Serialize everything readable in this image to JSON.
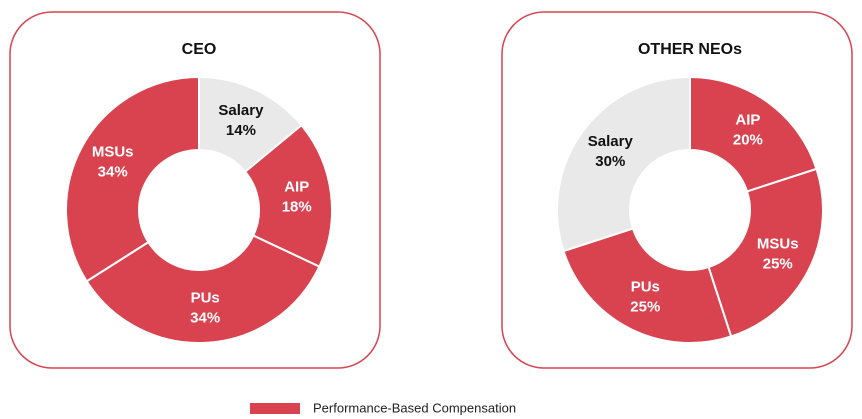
{
  "chart_data": [
    {
      "type": "pie",
      "donut": true,
      "title": "CEO",
      "categories": [
        "Salary",
        "AIP",
        "PUs",
        "MSUs"
      ],
      "values": [
        14,
        18,
        34,
        34
      ],
      "value_labels": [
        "14%",
        "18%",
        "34%",
        "34%"
      ],
      "colors": [
        "#e9e9e9",
        "#d9434f",
        "#d9434f",
        "#d9434f"
      ]
    },
    {
      "type": "pie",
      "donut": true,
      "title": "OTHER NEOs",
      "categories": [
        "AIP",
        "MSUs",
        "PUs",
        "Salary"
      ],
      "values": [
        20,
        25,
        25,
        30
      ],
      "value_labels": [
        "20%",
        "25%",
        "25%",
        "30%"
      ],
      "colors": [
        "#d9434f",
        "#d9434f",
        "#d9434f",
        "#e9e9e9"
      ]
    }
  ],
  "legend": {
    "label": "Performance-Based Compensation",
    "color": "#d9434f"
  }
}
